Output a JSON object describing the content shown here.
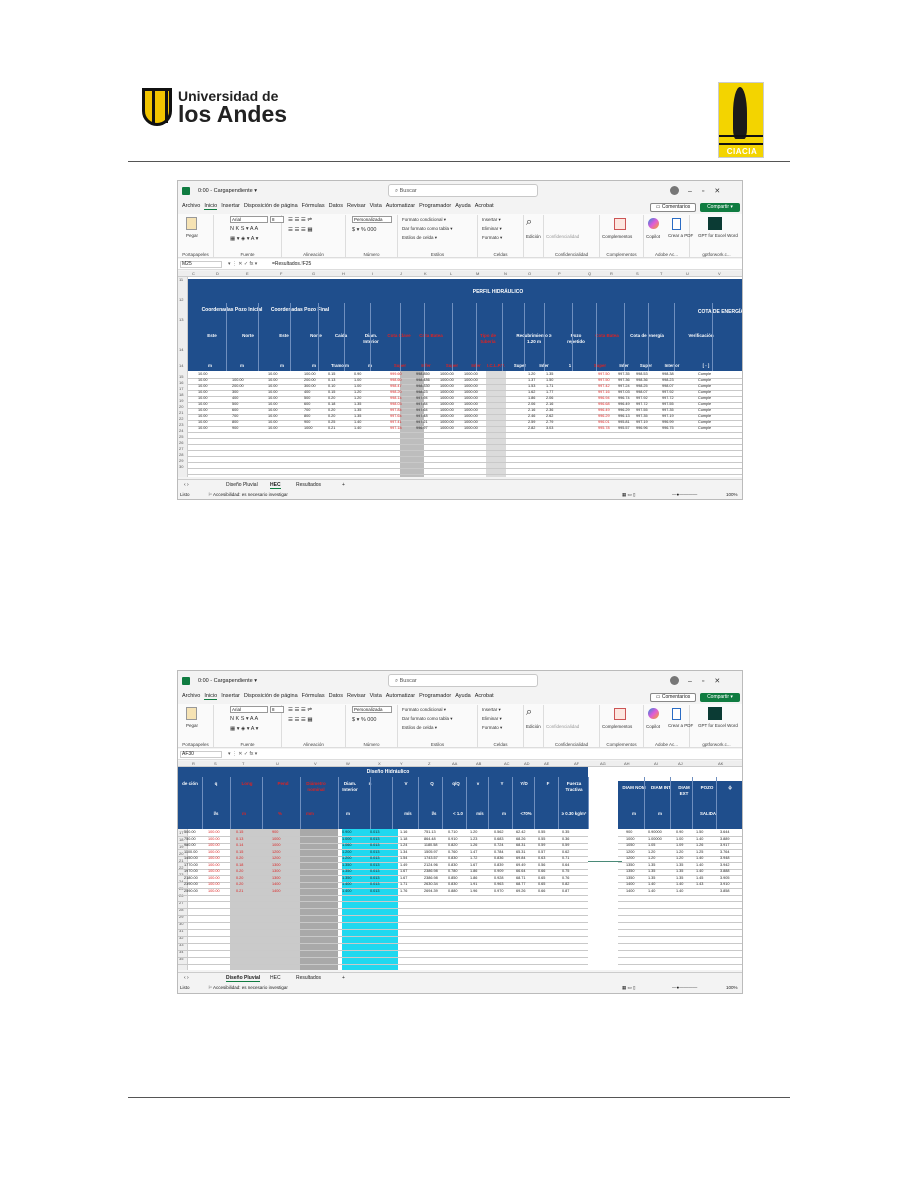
{
  "header": {
    "university_line1": "Universidad de",
    "university_line2": "los Andes",
    "right_logo_brand": "CIACIA"
  },
  "excel": {
    "title": "0:00 - Cargapendiente ▾",
    "search_placeholder": "Buscar",
    "menu": [
      "Archivo",
      "Inicio",
      "Insertar",
      "Disposición de página",
      "Fórmulas",
      "Datos",
      "Revisar",
      "Vista",
      "Automatizar",
      "Programador",
      "Ayuda",
      "Acrobat"
    ],
    "comments_button": "Comentarios",
    "share_button": "Compartir ▾",
    "ribbon": {
      "paste": "Pegar",
      "clipboard": "Portapapeles",
      "font_name": "Arial",
      "font_size": "8",
      "font_group": "Fuente",
      "align_group": "Alineación",
      "number_format": "Personalizada",
      "number_group": "Número",
      "cond_format": "Formato condicional ▾",
      "table_format": "Dar formato como tabla ▾",
      "cell_styles": "Estilos de celda ▾",
      "styles_group": "Estilos",
      "insert": "Insertar ▾",
      "delete": "Eliminar ▾",
      "format": "Formato ▾",
      "cells_group": "Celdas",
      "edit": "Edición",
      "privacy": "Confidencialidad",
      "privacy_group": "Confidencialidad",
      "addins": "Complementos",
      "addins_group": "Complementos",
      "copilot": "Copilot",
      "create_pdf": "Crear a PDF",
      "adobe_group": "Adobe Ac...",
      "gpt": "GPT for Excel Word",
      "gpt_group": "gptforwork.c..."
    },
    "sheet_tabs": [
      "Diseño Pluvial",
      "HEC",
      "Resultados"
    ],
    "status_ready": "Listo",
    "status_accessibility": "Accesibilidad: es necesario investigar",
    "zoom": "100%"
  },
  "shot1": {
    "name_box": "M25",
    "formula": "=Resultados.!F25",
    "col_letters": [
      "C",
      "D",
      "E",
      "F",
      "G",
      "H",
      "I",
      "J",
      "K",
      "L",
      "M",
      "N",
      "O",
      "P",
      "Q",
      "R",
      "S",
      "T",
      "U",
      "V"
    ],
    "main_title": "PERFIL HIDRÁULICO",
    "energy_title": "COTA DE ENERGÍA",
    "groups": [
      "Coordenadas Pozo Inicial",
      "Coordenadas Pozo Final"
    ],
    "headers": [
      "Este",
      "Norte",
      "Este",
      "Norte",
      "Caída",
      "Diam. Interior",
      "Cota Clave",
      "Cota Batea",
      "Tipo de tubería",
      "Recubrimiento ≥ 1.20 m",
      "Pozo repetido",
      "Cota Batea",
      "Cota de energía",
      "Verificación"
    ],
    "units": [
      "m",
      "m",
      "m",
      "m",
      "Tramo m",
      "m",
      "Super",
      "Infer",
      "Super",
      "Infer",
      "I.C.L.P.V.",
      "Super",
      "Infer",
      "1",
      "Super",
      "Infer",
      "Super",
      "Interior",
      "[ - ]"
    ],
    "rows": [
      [
        "10.00",
        "",
        "10.00",
        "100.00",
        "0.15",
        "0.90",
        "999.60",
        "998.850",
        "1000.00",
        "1000.00",
        "1.20",
        "1.35",
        "997.50",
        "997.35",
        "998.53",
        "998.38",
        "Cumple"
      ],
      [
        "10.00",
        "100.00",
        "10.00",
        "200.00",
        "0.13",
        "1.00",
        "998.60",
        "998.486",
        "1000.00",
        "1000.00",
        "1.37",
        "1.50",
        "997.50",
        "997.36",
        "998.36",
        "998.23",
        "Cumple"
      ],
      [
        "10.00",
        "200.00",
        "10.00",
        "300.00",
        "0.10",
        "1.00",
        "998.47",
        "998.330",
        "1000.00",
        "1000.00",
        "1.53",
        "1.71",
        "997.42",
        "997.24",
        "998.25",
        "998.07",
        "Cumple"
      ],
      [
        "10.00",
        "300",
        "10.00",
        "400",
        "0.15",
        "1.20",
        "998.20",
        "998.23",
        "1000.00",
        "1000.00",
        "1.62",
        "1.77",
        "997.16",
        "997.03",
        "998.07",
        "997.92",
        "Cumple"
      ],
      [
        "10.00",
        "400",
        "10.00",
        "500",
        "0.20",
        "1.20",
        "998.14",
        "997.94",
        "1000.00",
        "1000.00",
        "1.86",
        "2.06",
        "996.94",
        "996.74",
        "997.92",
        "997.72",
        "Cumple"
      ],
      [
        "10.00",
        "500",
        "10.00",
        "600",
        "0.18",
        "1.35",
        "998.03",
        "997.84",
        "1000.00",
        "1000.00",
        "2.06",
        "2.16",
        "996.68",
        "996.49",
        "997.72",
        "997.55",
        "Cumple"
      ],
      [
        "10.00",
        "600",
        "10.00",
        "700",
        "0.20",
        "1.35",
        "997.84",
        "997.64",
        "1000.00",
        "1000.00",
        "2.16",
        "2.36",
        "996.49",
        "996.29",
        "997.55",
        "997.35",
        "Cumple"
      ],
      [
        "10.00",
        "700",
        "10.00",
        "800",
        "0.20",
        "1.35",
        "997.64",
        "997.48",
        "1000.00",
        "1000.00",
        "2.46",
        "2.62",
        "996.29",
        "996.13",
        "997.35",
        "997.19",
        "Cumple"
      ],
      [
        "10.00",
        "800",
        "10.00",
        "900",
        "0.25",
        "1.40",
        "997.41",
        "997.21",
        "1000.00",
        "1000.00",
        "2.59",
        "2.79",
        "996.01",
        "995.81",
        "997.19",
        "996.99",
        "Cumple"
      ],
      [
        "10.00",
        "900",
        "10.00",
        "1000",
        "0.21",
        "1.40",
        "997.18",
        "996.97",
        "1000.00",
        "1000.00",
        "2.82",
        "3.03",
        "995.78",
        "995.57",
        "996.96",
        "996.75",
        "Cumple"
      ]
    ]
  },
  "shot2": {
    "name_box": "AF30",
    "formula": "",
    "col_letters": [
      "R",
      "S",
      "T",
      "U",
      "V",
      "W",
      "X",
      "Y",
      "Z",
      "AA",
      "AB",
      "AC",
      "AD",
      "AE",
      "AF",
      "AG",
      "AH",
      "AI",
      "AJ",
      "AK"
    ],
    "main_title": "Diseño Hidráulico",
    "headers": [
      "de ción",
      "q",
      "Long",
      "Pend",
      "Diámetro nominal",
      "Diam. Interior",
      "n",
      "V",
      "Q",
      "q/Q",
      "v",
      "Y",
      "Y/D",
      "F",
      "Fuerza Tractiva",
      "DIAM NOM",
      "DIAM INT",
      "DIAM EXT",
      "POZO",
      "ɸ"
    ],
    "units": [
      "l/s",
      "m",
      "%",
      "mm",
      "m",
      "",
      "m/s",
      "l/s",
      "< 1.0",
      "m/s",
      "m",
      "<70%",
      "",
      "≥ 0.30 kg/m²",
      "",
      "m",
      "m",
      "SALIDA"
    ],
    "rows": [
      [
        "500.00",
        "100.00",
        "0.15",
        "900",
        "0.900",
        "0.013",
        "1.16",
        "751.13",
        "0.710",
        "1.20",
        "0.562",
        "62.42",
        "0.55",
        "0.35",
        "900",
        "0.90000",
        "0.90",
        "1.50",
        "3.644"
      ],
      [
        "750.00",
        "100.00",
        "0.13",
        "1000",
        "1.000",
        "0.013",
        "1.18",
        "864.48",
        "0.910",
        "1.23",
        "0.683",
        "68.26",
        "0.55",
        "0.36",
        "1000",
        "1.00000",
        "1.00",
        "1.40",
        "3.889"
      ],
      [
        "980.00",
        "100.00",
        "0.14",
        "1000",
        "1.060",
        "0.013",
        "1.24",
        "1180.58",
        "0.820",
        "1.26",
        "0.724",
        "68.31",
        "0.59",
        "0.59",
        "1050",
        "1.05",
        "1.09",
        "1.26",
        "3.917"
      ],
      [
        "1100.00",
        "100.00",
        "0.15",
        "1200",
        "1.200",
        "0.013",
        "1.34",
        "1505.97",
        "0.760",
        "1.47",
        "0.784",
        "65.31",
        "0.57",
        "0.62",
        "1200",
        "1.20",
        "1.20",
        "1.25",
        "3.764"
      ],
      [
        "1450.00",
        "100.00",
        "0.20",
        "1200",
        "1.200",
        "0.013",
        "1.54",
        "1743.57",
        "0.830",
        "1.72",
        "0.836",
        "69.84",
        "0.63",
        "0.71",
        "1200",
        "1.20",
        "1.20",
        "1.40",
        "3.948"
      ],
      [
        "1770.00",
        "100.00",
        "0.18",
        "1300",
        "1.350",
        "0.013",
        "1.49",
        "2124.96",
        "0.830",
        "1.67",
        "0.839",
        "69.49",
        "0.56",
        "0.64",
        "1350",
        "1.35",
        "1.35",
        "1.40",
        "3.942"
      ],
      [
        "1970.00",
        "100.00",
        "0.20",
        "1300",
        "1.350",
        "0.013",
        "1.67",
        "2386.98",
        "0.780",
        "1.86",
        "0.909",
        "66.64",
        "0.66",
        "0.75",
        "1350",
        "1.35",
        "1.35",
        "1.40",
        "3.888"
      ],
      [
        "2180.00",
        "100.00",
        "0.20",
        "1300",
        "1.350",
        "0.013",
        "1.67",
        "2386.98",
        "0.850",
        "1.86",
        "0.928",
        "68.71",
        "0.65",
        "0.76",
        "1350",
        "1.35",
        "1.35",
        "1.45",
        "3.905"
      ],
      [
        "2390.00",
        "100.00",
        "0.20",
        "1400",
        "1.400",
        "0.013",
        "1.71",
        "2630.34",
        "0.830",
        "1.91",
        "0.963",
        "68.77",
        "0.65",
        "0.82",
        "1400",
        "1.40",
        "1.40",
        "1.43",
        "3.910"
      ],
      [
        "2590.00",
        "100.00",
        "0.21",
        "1400",
        "1.400",
        "0.013",
        "1.76",
        "2694.39",
        "0.880",
        "1.96",
        "0.970",
        "69.26",
        "0.66",
        "0.87",
        "1400",
        "1.40",
        "1.40",
        "",
        "3.858"
      ]
    ]
  }
}
